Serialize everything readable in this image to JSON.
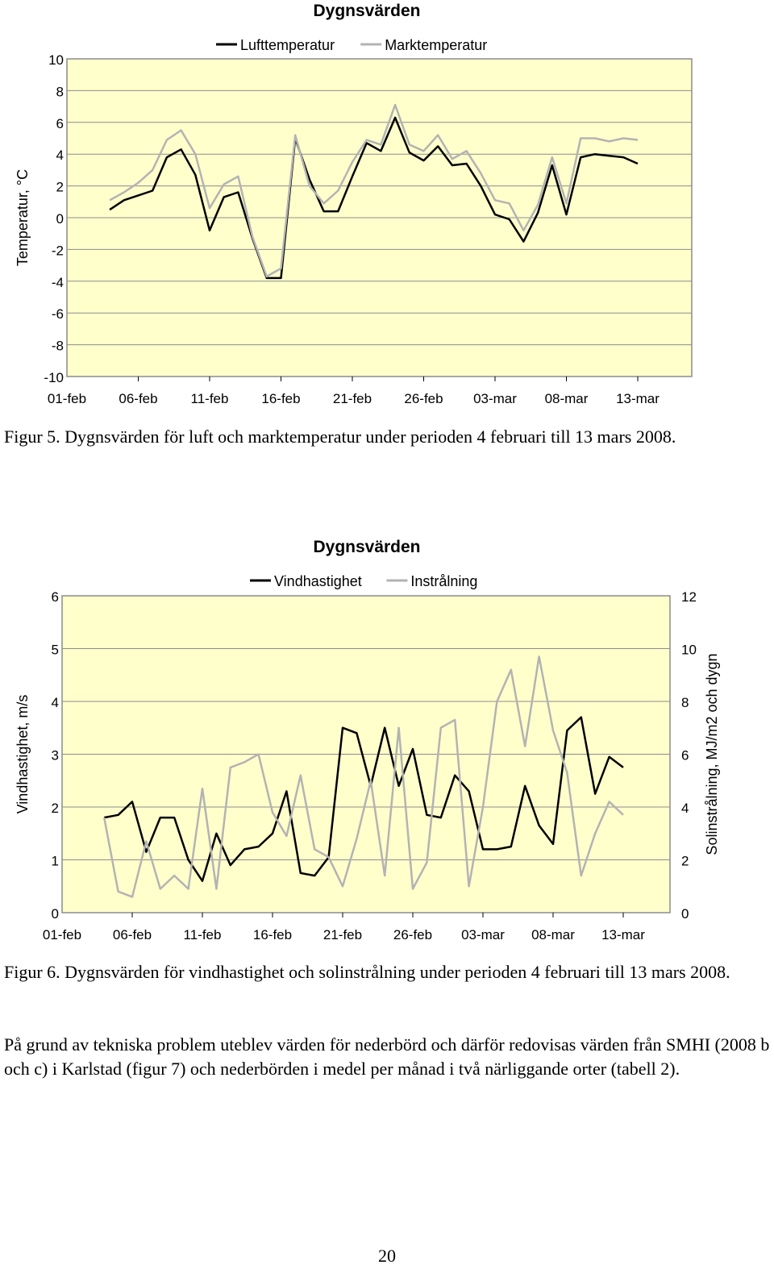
{
  "figures": [
    {
      "caption": "Figur 5. Dygnsvärden för luft och marktemperatur under perioden 4 februari till 13 mars 2008."
    },
    {
      "caption": "Figur 6. Dygnsvärden för vindhastighet och solinstrålning under perioden 4 februari till 13 mars 2008."
    }
  ],
  "body_text": "På grund av tekniska problem uteblev värden för nederbörd och därför redovisas värden från SMHI (2008 b och c) i Karlstad (figur 7) och nederbörden i medel per månad i två närliggande orter (tabell 2).",
  "page_number": "20",
  "chart_data": [
    {
      "type": "line",
      "title": "Dygnsvärden",
      "ylabel": "Temperatur, °C",
      "xlabel": "",
      "ylim": [
        -10,
        10
      ],
      "yticks": [
        "10",
        "8",
        "6",
        "4",
        "2",
        "0",
        "-2",
        "-4",
        "-6",
        "-8",
        "-10"
      ],
      "xticks": [
        "01-feb",
        "06-feb",
        "11-feb",
        "16-feb",
        "21-feb",
        "26-feb",
        "03-mar",
        "08-mar",
        "13-mar"
      ],
      "x_start_day": 4,
      "plot_bg": "#ffffcc",
      "legend_position": "top",
      "grid": true,
      "series": [
        {
          "name": "Lufttemperatur",
          "color": "#000000",
          "values": [
            0.5,
            1.1,
            1.4,
            1.7,
            3.8,
            4.3,
            2.7,
            -0.8,
            1.3,
            1.6,
            -1.3,
            -3.8,
            -3.8,
            5.0,
            2.4,
            0.4,
            0.4,
            2.6,
            4.7,
            4.2,
            6.3,
            4.1,
            3.6,
            4.5,
            3.3,
            3.4,
            2.0,
            0.2,
            -0.1,
            -1.5,
            0.3,
            3.3,
            0.2,
            3.8,
            4.0,
            3.9,
            3.8,
            3.4
          ]
        },
        {
          "name": "Marktemperatur",
          "color": "#b3b3b3",
          "values": [
            1.1,
            1.6,
            2.2,
            3.0,
            4.9,
            5.5,
            4.0,
            0.6,
            2.1,
            2.6,
            -1.2,
            -3.7,
            -3.2,
            5.2,
            2.0,
            0.9,
            1.7,
            3.5,
            4.9,
            4.6,
            7.1,
            4.6,
            4.2,
            5.2,
            3.7,
            4.2,
            2.8,
            1.1,
            0.9,
            -0.8,
            0.8,
            3.8,
            0.9,
            5.0,
            5.0,
            4.8,
            5.0,
            4.9
          ]
        }
      ]
    },
    {
      "type": "line",
      "title": "Dygnsvärden",
      "ylabel": "Vindhastighet, m/s",
      "y2label": "Solinstrålning, MJ/m2 och dygn",
      "xlabel": "",
      "ylim": [
        0,
        6
      ],
      "y2lim": [
        0,
        12
      ],
      "yticks": [
        "6",
        "5",
        "4",
        "3",
        "2",
        "1",
        "0"
      ],
      "y2ticks": [
        "12",
        "10",
        "8",
        "6",
        "4",
        "2",
        "0"
      ],
      "xticks": [
        "01-feb",
        "06-feb",
        "11-feb",
        "16-feb",
        "21-feb",
        "26-feb",
        "03-mar",
        "08-mar",
        "13-mar"
      ],
      "x_start_day": 4,
      "plot_bg": "#ffffcc",
      "legend_position": "top",
      "grid": true,
      "series": [
        {
          "name": "Vindhastighet",
          "color": "#000000",
          "axis": "left",
          "values": [
            1.8,
            1.85,
            2.1,
            1.15,
            1.8,
            1.8,
            1.0,
            0.6,
            1.5,
            0.9,
            1.2,
            1.25,
            1.5,
            2.3,
            0.75,
            0.7,
            1.05,
            3.5,
            3.4,
            2.4,
            3.5,
            2.4,
            3.1,
            1.85,
            1.8,
            2.6,
            2.3,
            1.2,
            1.2,
            1.25,
            2.4,
            1.65,
            1.3,
            3.45,
            3.7,
            2.25,
            2.95,
            2.75
          ]
        },
        {
          "name": "Instrålning",
          "color": "#b3b3b3",
          "axis": "right",
          "values": [
            3.6,
            0.8,
            0.6,
            2.7,
            0.9,
            1.4,
            0.9,
            4.7,
            0.9,
            5.5,
            5.7,
            6.0,
            3.8,
            2.9,
            5.2,
            2.4,
            2.1,
            1.0,
            2.8,
            5.0,
            1.4,
            7.0,
            0.9,
            1.9,
            7.0,
            7.3,
            1.0,
            4.0,
            8.0,
            9.2,
            6.3,
            9.7,
            6.9,
            5.3,
            1.4,
            3.0,
            4.2,
            3.7
          ]
        }
      ]
    }
  ]
}
